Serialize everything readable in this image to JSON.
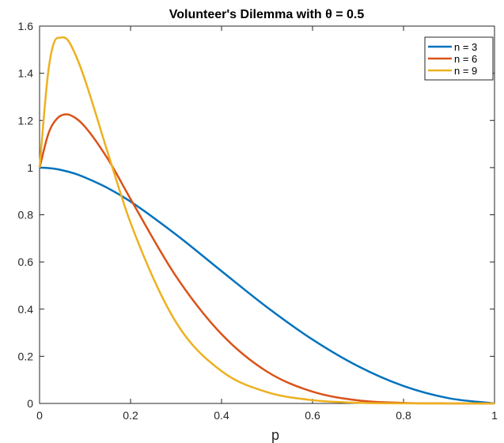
{
  "chart_data": {
    "type": "line",
    "title": "Volunteer's Dilemma with θ = 0.5",
    "xlabel": "p",
    "ylabel": "",
    "xlim": [
      0,
      1
    ],
    "ylim": [
      0,
      1.6
    ],
    "xticks": [
      0,
      0.2,
      0.4,
      0.6,
      0.8,
      1
    ],
    "xtick_labels": [
      "0",
      "0.2",
      "0.4",
      "0.6",
      "0.8",
      "1"
    ],
    "yticks": [
      0,
      0.2,
      0.4,
      0.6,
      0.8,
      1,
      1.2,
      1.4,
      1.6
    ],
    "ytick_labels": [
      "0",
      "0.2",
      "0.4",
      "0.6",
      "0.8",
      "1",
      "1.2",
      "1.4",
      "1.6"
    ],
    "grid": false,
    "legend_position": "top-right",
    "x": [
      0,
      0.02,
      0.04,
      0.06,
      0.08,
      0.1,
      0.15,
      0.2,
      0.3,
      0.4,
      0.5,
      0.6,
      0.7,
      0.8,
      0.9,
      1.0
    ],
    "series": [
      {
        "name": "n = 3",
        "color": "#0072BD",
        "values": [
          1.0,
          0.998,
          0.993,
          0.984,
          0.973,
          0.958,
          0.913,
          0.856,
          0.716,
          0.561,
          0.408,
          0.271,
          0.158,
          0.074,
          0.022,
          0.0
        ]
      },
      {
        "name": "n = 6",
        "color": "#D95319",
        "values": [
          1.0,
          1.147,
          1.211,
          1.226,
          1.209,
          1.173,
          1.037,
          0.867,
          0.539,
          0.294,
          0.135,
          0.05,
          0.013,
          0.0022,
          0.0001,
          0.0
        ]
      },
      {
        "name": "n = 9",
        "color": "#EDB120",
        "values": [
          1.0,
          1.42,
          1.55,
          1.545,
          1.474,
          1.371,
          1.063,
          0.766,
          0.344,
          0.137,
          0.048,
          0.014,
          0.003,
          0.0003,
          0.0,
          0.0
        ]
      }
    ]
  }
}
